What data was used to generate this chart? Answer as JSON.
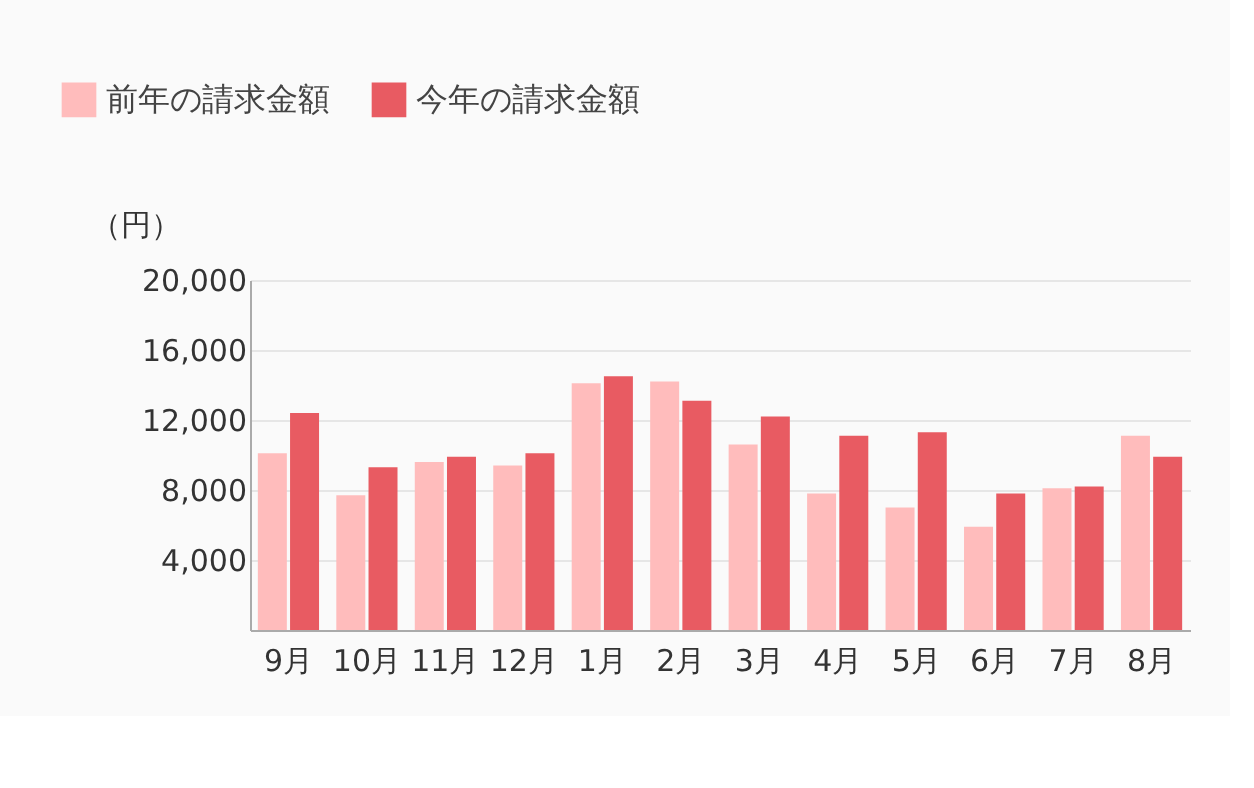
{
  "chart_data": {
    "type": "bar",
    "categories": [
      "9月",
      "10月",
      "11月",
      "12月",
      "1月",
      "2月",
      "3月",
      "4月",
      "5月",
      "6月",
      "7月",
      "8月"
    ],
    "series": [
      {
        "name": "前年の請求金額",
        "color": "#ffbcbc",
        "values": [
          10100,
          7700,
          9600,
          9400,
          14100,
          14200,
          10600,
          7800,
          7000,
          5900,
          8100,
          11100
        ]
      },
      {
        "name": "今年の請求金額",
        "color": "#e85b62",
        "values": [
          12400,
          9300,
          9900,
          10100,
          14500,
          13100,
          12200,
          11100,
          11300,
          7800,
          8200,
          9900
        ]
      }
    ],
    "ylabel": "（円）",
    "ylim": [
      0,
      20000
    ],
    "yticks": [
      {
        "value": 4000,
        "label": "4,000"
      },
      {
        "value": 8000,
        "label": "8,000"
      },
      {
        "value": 12000,
        "label": "12,000"
      },
      {
        "value": 16000,
        "label": "16,000"
      },
      {
        "value": 20000,
        "label": "20,000"
      }
    ],
    "grid": "y",
    "legend": "top left"
  }
}
